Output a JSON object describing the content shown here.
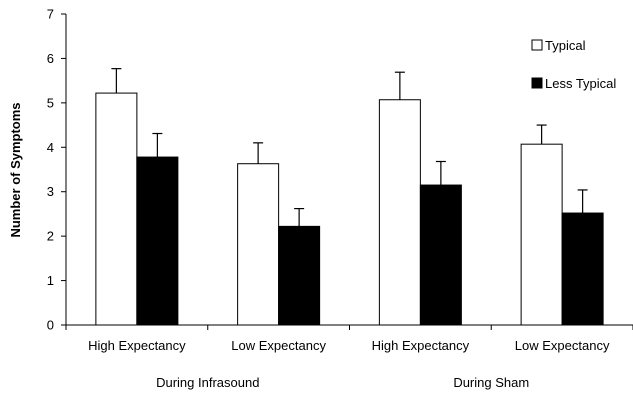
{
  "chart_data": {
    "type": "bar",
    "ylabel": "Number of Symptoms",
    "ylim": [
      0,
      7
    ],
    "yticks": [
      0,
      1,
      2,
      3,
      4,
      5,
      6,
      7
    ],
    "grid": false,
    "legend_position": "top-right",
    "categories": [
      "High Expectancy",
      "Low Expectancy",
      "High Expectancy",
      "Low Expectancy"
    ],
    "groups": [
      {
        "label": "During Infrasound",
        "categories": [
          0,
          1
        ]
      },
      {
        "label": "During Sham",
        "categories": [
          2,
          3
        ]
      }
    ],
    "series": [
      {
        "name": "Typical",
        "color": "#ffffff",
        "values": [
          5.22,
          3.63,
          5.07,
          4.07
        ],
        "errors": [
          0.55,
          0.47,
          0.62,
          0.43
        ]
      },
      {
        "name": "Less Typical",
        "color": "#000000",
        "values": [
          3.78,
          2.22,
          3.15,
          2.52
        ],
        "errors": [
          0.53,
          0.4,
          0.53,
          0.52
        ]
      }
    ]
  }
}
